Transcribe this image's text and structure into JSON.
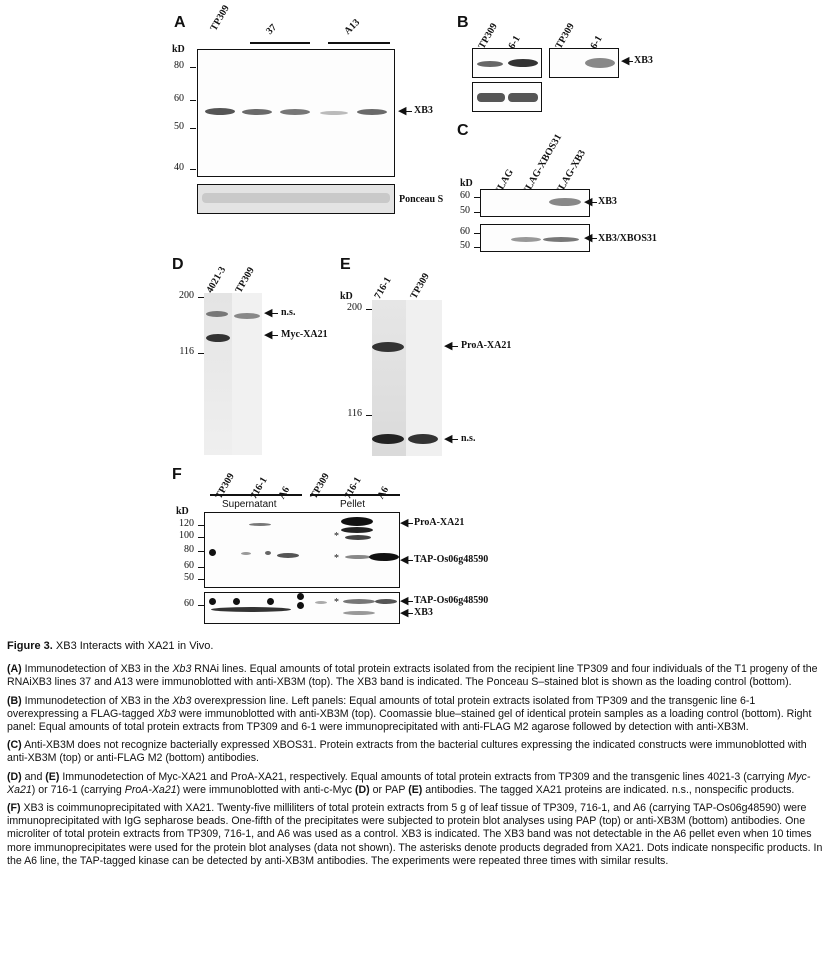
{
  "figure": {
    "units": "kD",
    "panelA": {
      "label": "A",
      "lanes": [
        "TP309",
        "37",
        "A13"
      ],
      "mw": [
        "80",
        "60",
        "50",
        "40"
      ],
      "annotations": [
        "XB3",
        "Ponceau S"
      ]
    },
    "panelB": {
      "label": "B",
      "lanes_left": [
        "TP309",
        "6-1"
      ],
      "lanes_right": [
        "TP309",
        "6-1"
      ],
      "annotation": "XB3"
    },
    "panelC": {
      "label": "C",
      "lanes": [
        "FLAG",
        "FLAG-XBOS31",
        "FLAG-XB3"
      ],
      "mw_top": [
        "60",
        "50"
      ],
      "mw_bottom": [
        "60",
        "50"
      ],
      "annotations": [
        "XB3",
        "XB3/XBOS31"
      ]
    },
    "panelD": {
      "label": "D",
      "lanes": [
        "4021-3",
        "TP309"
      ],
      "mw": [
        "200",
        "116"
      ],
      "annotations": [
        "n.s.",
        "Myc-XA21"
      ]
    },
    "panelE": {
      "label": "E",
      "lanes": [
        "716-1",
        "TP309"
      ],
      "mw": [
        "200",
        "116"
      ],
      "annotations": [
        "ProA-XA21",
        "n.s."
      ]
    },
    "panelF": {
      "label": "F",
      "lanes": [
        "TP309",
        "716-1",
        "A6",
        "TP309",
        "716-1",
        "A6"
      ],
      "groups": [
        "Supernatant",
        "Pellet"
      ],
      "mw_top": [
        "120",
        "100",
        "80",
        "60",
        "50"
      ],
      "mw_bottom": [
        "60"
      ],
      "annotations": [
        "ProA-XA21",
        "TAP-Os06g48590",
        "TAP-Os06g48590",
        "XB3"
      ],
      "asterisk": "*"
    }
  },
  "caption": {
    "title_bold": "Figure 3.",
    "title_rest": " XB3 Interacts with XA21 in Vivo.",
    "a": {
      "l": "(A)",
      "t1": " Immunodetection of XB3 in the ",
      "i1": "Xb3",
      "t2": " RNAi lines. Equal amounts of total protein extracts isolated from the recipient line TP309 and four individuals of the T1 progeny of the RNAiXB3 lines 37 and A13 were immunoblotted with anti-XB3M (top). The XB3 band is indicated. The Ponceau S–stained blot is shown as the loading control (bottom)."
    },
    "b": {
      "l": "(B)",
      "t1": " Immunodetection of XB3 in the ",
      "i1": "Xb3",
      "t2": " overexpression line. Left panels: Equal amounts of total protein extracts isolated from TP309 and the transgenic line 6-1 overexpressing a FLAG-tagged ",
      "i2": "Xb3",
      "t3": " were immunoblotted with anti-XB3M (top). Coomassie blue–stained gel of identical protein samples as a loading control (bottom). Right panel: Equal amounts of total protein extracts from TP309 and 6-1 were immunoprecipitated with anti-FLAG M2 agarose followed by detection with anti-XB3M."
    },
    "c": {
      "l": "(C)",
      "t1": " Anti-XB3M does not recognize bacterially expressed XBOS31. Protein extracts from the bacterial cultures expressing the indicated constructs were immunoblotted with anti-XB3M (top) or anti-FLAG M2 (bottom) antibodies."
    },
    "de": {
      "l1": "(D)",
      "t1": " and ",
      "l2": "(E)",
      "t2": " Immunodetection of Myc-XA21 and ProA-XA21, respectively. Equal amounts of total protein extracts from TP309 and the transgenic lines 4021-3 (carrying ",
      "i1": "Myc-Xa21",
      "t3": ") or 716-1 (carrying ",
      "i2": "ProA-Xa21",
      "t4": ") were immunoblotted with anti-c-Myc ",
      "l3": "(D)",
      "t5": " or PAP ",
      "l4": "(E)",
      "t6": " antibodies. The tagged XA21 proteins are indicated. n.s., nonspecific products."
    },
    "f": {
      "l": "(F)",
      "t1": " XB3 is coimmunoprecipitated with XA21. Twenty-five milliliters of total protein extracts from 5 g of leaf tissue of TP309, 716-1, and A6 (carrying TAP-Os06g48590) were immunoprecipitated with IgG sepharose beads. One-fifth of the precipitates were subjected to protein blot analyses using PAP (top) or anti-XB3M (bottom) antibodies. One microliter of total protein extracts from TP309, 716-1, and A6 was used as a control. XB3 is indicated. The XB3 band was not detectable in the A6 pellet even when 10 times more immunoprecipitates were used for the protein blot analyses (data not shown). The asterisks denote products degraded from XA21. Dots indicate nonspecific products. In the A6 line, the TAP-tagged kinase can be detected by anti-XB3M antibodies. The experiments were repeated three times with similar results."
    }
  }
}
